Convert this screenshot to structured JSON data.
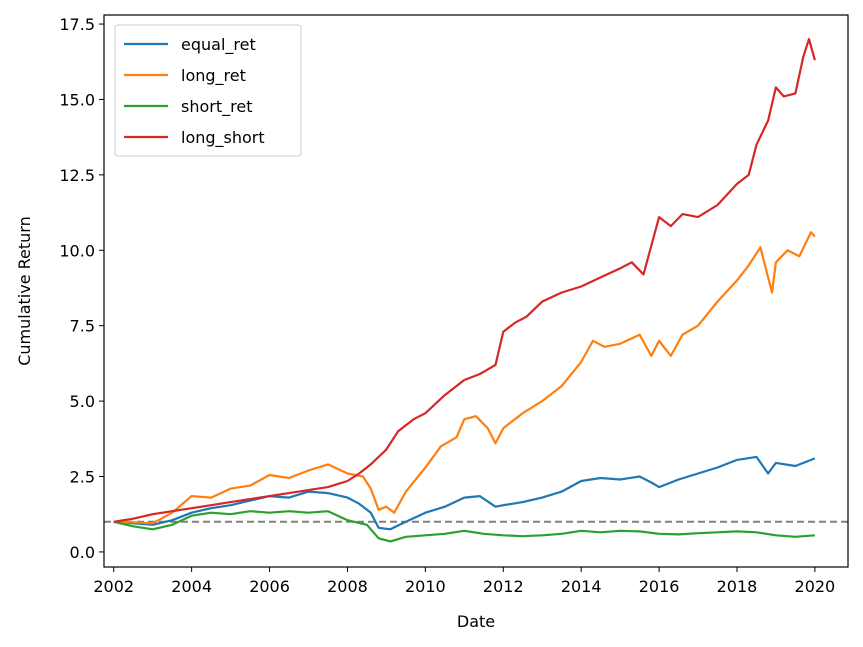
{
  "chart_data": {
    "type": "line",
    "xlabel": "Date",
    "ylabel": "Cumulative Return",
    "xlim": [
      2001.75,
      2020.85
    ],
    "ylim": [
      -0.5,
      17.8
    ],
    "x_ticks": [
      "2002",
      "2004",
      "2006",
      "2008",
      "2010",
      "2012",
      "2014",
      "2016",
      "2018",
      "2020"
    ],
    "y_ticks": [
      "0.0",
      "2.5",
      "5.0",
      "7.5",
      "10.0",
      "12.5",
      "15.0",
      "17.5"
    ],
    "reference_line": {
      "y": 1.0,
      "style": "dashed",
      "color": "#808080"
    },
    "legend_position": "upper-left",
    "grid": false,
    "series": [
      {
        "name": "equal_ret",
        "color": "#1f77b4",
        "points": [
          [
            2002.0,
            1.0
          ],
          [
            2002.5,
            0.95
          ],
          [
            2003.0,
            0.9
          ],
          [
            2003.5,
            1.05
          ],
          [
            2004.0,
            1.3
          ],
          [
            2004.5,
            1.45
          ],
          [
            2005.0,
            1.55
          ],
          [
            2005.5,
            1.7
          ],
          [
            2006.0,
            1.85
          ],
          [
            2006.5,
            1.8
          ],
          [
            2007.0,
            2.0
          ],
          [
            2007.5,
            1.95
          ],
          [
            2008.0,
            1.8
          ],
          [
            2008.3,
            1.6
          ],
          [
            2008.6,
            1.3
          ],
          [
            2008.8,
            0.8
          ],
          [
            2009.1,
            0.75
          ],
          [
            2009.5,
            1.0
          ],
          [
            2010.0,
            1.3
          ],
          [
            2010.5,
            1.5
          ],
          [
            2011.0,
            1.8
          ],
          [
            2011.4,
            1.85
          ],
          [
            2011.8,
            1.5
          ],
          [
            2012.0,
            1.55
          ],
          [
            2012.5,
            1.65
          ],
          [
            2013.0,
            1.8
          ],
          [
            2013.5,
            2.0
          ],
          [
            2014.0,
            2.35
          ],
          [
            2014.5,
            2.45
          ],
          [
            2015.0,
            2.4
          ],
          [
            2015.5,
            2.5
          ],
          [
            2015.8,
            2.3
          ],
          [
            2016.0,
            2.15
          ],
          [
            2016.5,
            2.4
          ],
          [
            2017.0,
            2.6
          ],
          [
            2017.5,
            2.8
          ],
          [
            2018.0,
            3.05
          ],
          [
            2018.5,
            3.15
          ],
          [
            2018.8,
            2.6
          ],
          [
            2019.0,
            2.95
          ],
          [
            2019.5,
            2.85
          ],
          [
            2020.0,
            3.1
          ]
        ]
      },
      {
        "name": "long_ret",
        "color": "#ff7f0e",
        "points": [
          [
            2002.0,
            1.0
          ],
          [
            2002.5,
            0.98
          ],
          [
            2003.0,
            0.95
          ],
          [
            2003.5,
            1.3
          ],
          [
            2004.0,
            1.85
          ],
          [
            2004.5,
            1.8
          ],
          [
            2005.0,
            2.1
          ],
          [
            2005.5,
            2.2
          ],
          [
            2006.0,
            2.55
          ],
          [
            2006.5,
            2.45
          ],
          [
            2007.0,
            2.7
          ],
          [
            2007.5,
            2.9
          ],
          [
            2008.0,
            2.6
          ],
          [
            2008.4,
            2.5
          ],
          [
            2008.6,
            2.1
          ],
          [
            2008.8,
            1.4
          ],
          [
            2009.0,
            1.5
          ],
          [
            2009.2,
            1.3
          ],
          [
            2009.5,
            2.0
          ],
          [
            2010.0,
            2.8
          ],
          [
            2010.4,
            3.5
          ],
          [
            2010.8,
            3.8
          ],
          [
            2011.0,
            4.4
          ],
          [
            2011.3,
            4.5
          ],
          [
            2011.6,
            4.1
          ],
          [
            2011.8,
            3.6
          ],
          [
            2012.0,
            4.1
          ],
          [
            2012.5,
            4.6
          ],
          [
            2013.0,
            5.0
          ],
          [
            2013.5,
            5.5
          ],
          [
            2014.0,
            6.3
          ],
          [
            2014.3,
            7.0
          ],
          [
            2014.6,
            6.8
          ],
          [
            2015.0,
            6.9
          ],
          [
            2015.5,
            7.2
          ],
          [
            2015.8,
            6.5
          ],
          [
            2016.0,
            7.0
          ],
          [
            2016.3,
            6.5
          ],
          [
            2016.6,
            7.2
          ],
          [
            2017.0,
            7.5
          ],
          [
            2017.5,
            8.3
          ],
          [
            2018.0,
            9.0
          ],
          [
            2018.3,
            9.5
          ],
          [
            2018.6,
            10.1
          ],
          [
            2018.9,
            8.6
          ],
          [
            2019.0,
            9.6
          ],
          [
            2019.3,
            10.0
          ],
          [
            2019.6,
            9.8
          ],
          [
            2019.9,
            10.6
          ],
          [
            2020.0,
            10.45
          ]
        ]
      },
      {
        "name": "short_ret",
        "color": "#2ca02c",
        "points": [
          [
            2002.0,
            1.0
          ],
          [
            2002.5,
            0.85
          ],
          [
            2003.0,
            0.75
          ],
          [
            2003.5,
            0.9
          ],
          [
            2004.0,
            1.2
          ],
          [
            2004.5,
            1.3
          ],
          [
            2005.0,
            1.25
          ],
          [
            2005.5,
            1.35
          ],
          [
            2006.0,
            1.3
          ],
          [
            2006.5,
            1.35
          ],
          [
            2007.0,
            1.3
          ],
          [
            2007.5,
            1.35
          ],
          [
            2008.0,
            1.05
          ],
          [
            2008.5,
            0.9
          ],
          [
            2008.8,
            0.45
          ],
          [
            2009.1,
            0.35
          ],
          [
            2009.5,
            0.5
          ],
          [
            2010.0,
            0.55
          ],
          [
            2010.5,
            0.6
          ],
          [
            2011.0,
            0.7
          ],
          [
            2011.5,
            0.6
          ],
          [
            2012.0,
            0.55
          ],
          [
            2012.5,
            0.52
          ],
          [
            2013.0,
            0.55
          ],
          [
            2013.5,
            0.6
          ],
          [
            2014.0,
            0.7
          ],
          [
            2014.5,
            0.65
          ],
          [
            2015.0,
            0.7
          ],
          [
            2015.5,
            0.68
          ],
          [
            2016.0,
            0.6
          ],
          [
            2016.5,
            0.58
          ],
          [
            2017.0,
            0.62
          ],
          [
            2017.5,
            0.65
          ],
          [
            2018.0,
            0.68
          ],
          [
            2018.5,
            0.65
          ],
          [
            2019.0,
            0.55
          ],
          [
            2019.5,
            0.5
          ],
          [
            2020.0,
            0.55
          ]
        ]
      },
      {
        "name": "long_short",
        "color": "#d62728",
        "points": [
          [
            2002.0,
            1.0
          ],
          [
            2002.5,
            1.1
          ],
          [
            2003.0,
            1.25
          ],
          [
            2003.5,
            1.35
          ],
          [
            2004.0,
            1.45
          ],
          [
            2004.5,
            1.55
          ],
          [
            2005.0,
            1.65
          ],
          [
            2005.5,
            1.75
          ],
          [
            2006.0,
            1.85
          ],
          [
            2006.5,
            1.95
          ],
          [
            2007.0,
            2.05
          ],
          [
            2007.5,
            2.15
          ],
          [
            2008.0,
            2.35
          ],
          [
            2008.3,
            2.6
          ],
          [
            2008.6,
            2.9
          ],
          [
            2009.0,
            3.4
          ],
          [
            2009.3,
            4.0
          ],
          [
            2009.7,
            4.4
          ],
          [
            2010.0,
            4.6
          ],
          [
            2010.5,
            5.2
          ],
          [
            2011.0,
            5.7
          ],
          [
            2011.4,
            5.9
          ],
          [
            2011.8,
            6.2
          ],
          [
            2012.0,
            7.3
          ],
          [
            2012.3,
            7.6
          ],
          [
            2012.6,
            7.8
          ],
          [
            2013.0,
            8.3
          ],
          [
            2013.5,
            8.6
          ],
          [
            2014.0,
            8.8
          ],
          [
            2014.5,
            9.1
          ],
          [
            2015.0,
            9.4
          ],
          [
            2015.3,
            9.6
          ],
          [
            2015.6,
            9.2
          ],
          [
            2016.0,
            11.1
          ],
          [
            2016.3,
            10.8
          ],
          [
            2016.6,
            11.2
          ],
          [
            2017.0,
            11.1
          ],
          [
            2017.5,
            11.5
          ],
          [
            2018.0,
            12.2
          ],
          [
            2018.3,
            12.5
          ],
          [
            2018.5,
            13.5
          ],
          [
            2018.8,
            14.3
          ],
          [
            2019.0,
            15.4
          ],
          [
            2019.2,
            15.1
          ],
          [
            2019.5,
            15.2
          ],
          [
            2019.7,
            16.4
          ],
          [
            2019.85,
            17.0
          ],
          [
            2020.0,
            16.3
          ]
        ]
      }
    ]
  }
}
